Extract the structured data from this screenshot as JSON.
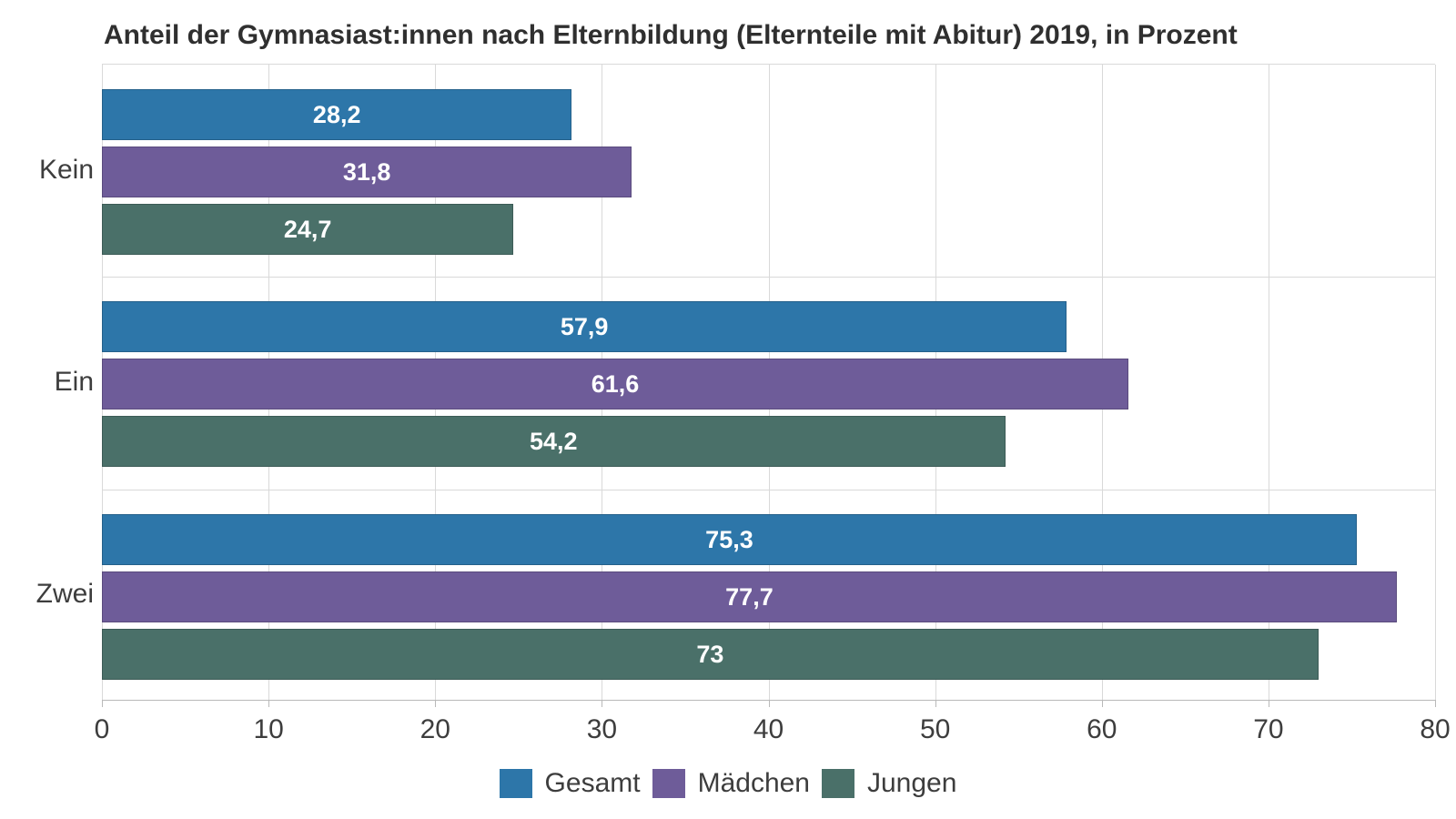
{
  "title": "Anteil der Gymnasiast:innen nach Elternbildung (Elternteile mit Abitur) 2019, in Prozent",
  "chart_data": {
    "type": "bar",
    "orientation": "horizontal",
    "title": "Anteil der Gymnasiast:innen nach Elternbildung (Elternteile mit Abitur) 2019, in Prozent",
    "categories": [
      "Kein",
      "Ein",
      "Zwei"
    ],
    "series": [
      {
        "name": "Gesamt",
        "slug": "gesamt",
        "color": "#2d76a9",
        "values": [
          28.2,
          57.9,
          75.3
        ],
        "value_labels": [
          "28,2",
          "57,9",
          "75,3"
        ]
      },
      {
        "name": "Mädchen",
        "slug": "maedchen",
        "color": "#6e5c99",
        "values": [
          31.8,
          61.6,
          77.7
        ],
        "value_labels": [
          "31,8",
          "61,6",
          "77,7"
        ]
      },
      {
        "name": "Jungen",
        "slug": "jungen",
        "color": "#4a7069",
        "values": [
          24.7,
          54.2,
          73
        ],
        "value_labels": [
          "24,7",
          "54,2",
          "73"
        ]
      }
    ],
    "xlim": [
      0,
      80
    ],
    "x_ticks": [
      "0",
      "10",
      "20",
      "30",
      "40",
      "50",
      "60",
      "70",
      "80"
    ],
    "grid": "vertical",
    "legend_position": "bottom",
    "value_decimal_separator": ","
  },
  "colors": {
    "background": "#ffffff",
    "gridline": "#d9d9d9",
    "axis_line": "#b9b9b9",
    "text": "#3d3d3d",
    "bar_value_text": "#ffffff"
  }
}
